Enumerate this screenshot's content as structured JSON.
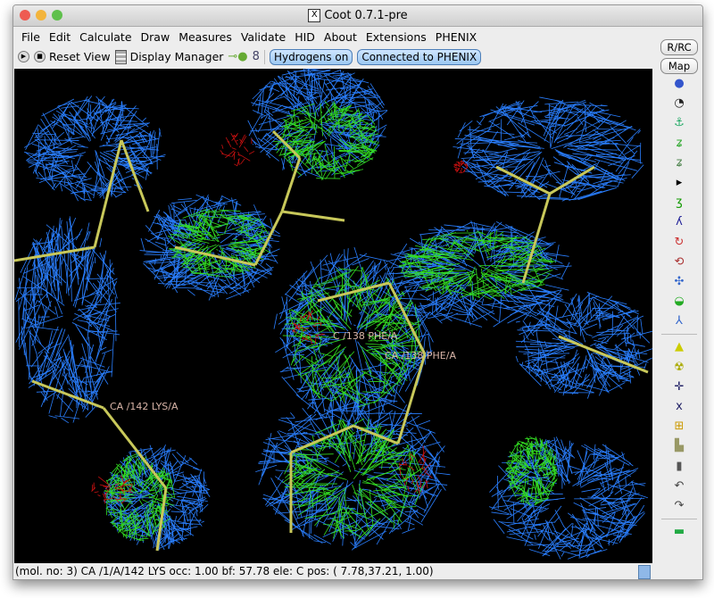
{
  "window": {
    "title": "Coot 0.7.1-pre"
  },
  "menubar": {
    "items": [
      "File",
      "Edit",
      "Calculate",
      "Draw",
      "Measures",
      "Validate",
      "HID",
      "About",
      "Extensions",
      "PHENIX"
    ]
  },
  "toolbar": {
    "reset_view": "Reset View",
    "display_manager": "Display Manager",
    "hydrogens": "Hydrogens on",
    "phenix": "Connected to PHENIX"
  },
  "side": {
    "rrc": "R/RC",
    "map": "Map"
  },
  "labels": {
    "lys": "CA /142 LYS/A",
    "phe_c": "C /138 PHE/A",
    "phe_ca": "CA /138 PHE/A"
  },
  "status": {
    "text": "(mol. no: 3)  CA /1/A/142 LYS occ:  1.00 bf: 57.78 ele:  C pos: ( 7.78,37.21, 1.00)"
  },
  "colors": {
    "map_blue": "#2a7fff",
    "map_green": "#33dd22",
    "diff_red": "#cc1111",
    "bond": "#c8c85a"
  }
}
